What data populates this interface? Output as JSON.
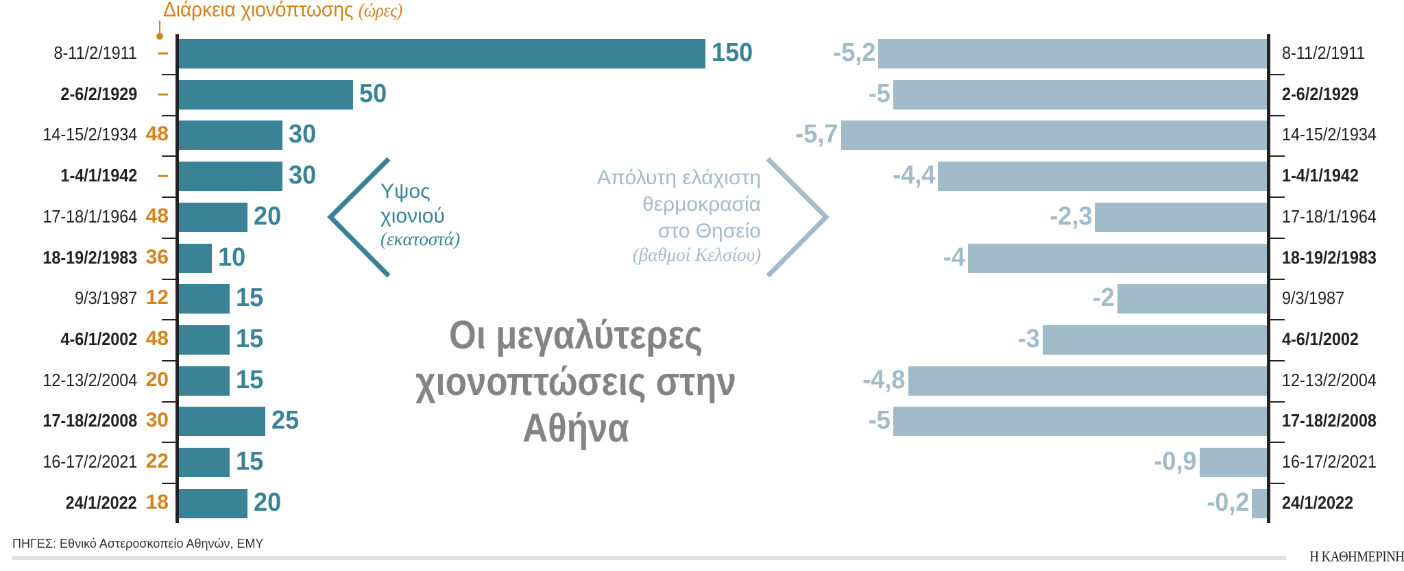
{
  "header": {
    "duration_label": "Διάρκεια χιονόπτωσης",
    "duration_unit": "(ώρες)"
  },
  "title": {
    "line1": "Οι μεγαλύτερες",
    "line2": "χιονοπτώσεις στην Αθήνα"
  },
  "legend": {
    "snow_line1": "Υψος",
    "snow_line2": "χιονιού",
    "snow_unit": "(εκατοστά)",
    "temp_line1": "Απόλυτη ελάχιστη",
    "temp_line2": "θερμοκρασία",
    "temp_line3": "στο Θησείο",
    "temp_unit": "(βαθμοί Κελσίου)"
  },
  "rows": [
    {
      "date": "8-11/2/1911",
      "hours": "–",
      "snow": "150",
      "temp": "-5,2",
      "bold": false
    },
    {
      "date": "2-6/2/1929",
      "hours": "–",
      "snow": "50",
      "temp": "-5",
      "bold": true
    },
    {
      "date": "14-15/2/1934",
      "hours": "48",
      "snow": "30",
      "temp": "-5,7",
      "bold": false
    },
    {
      "date": "1-4/1/1942",
      "hours": "–",
      "snow": "30",
      "temp": "-4,4",
      "bold": true
    },
    {
      "date": "17-18/1/1964",
      "hours": "48",
      "snow": "20",
      "temp": "-2,3",
      "bold": false
    },
    {
      "date": "18-19/2/1983",
      "hours": "36",
      "snow": "10",
      "temp": "-4",
      "bold": true
    },
    {
      "date": "9/3/1987",
      "hours": "12",
      "snow": "15",
      "temp": "-2",
      "bold": false
    },
    {
      "date": "4-6/1/2002",
      "hours": "48",
      "snow": "15",
      "temp": "-3",
      "bold": true
    },
    {
      "date": "12-13/2/2004",
      "hours": "20",
      "snow": "15",
      "temp": "-4,8",
      "bold": false
    },
    {
      "date": "17-18/2/2008",
      "hours": "30",
      "snow": "25",
      "temp": "-5",
      "bold": true
    },
    {
      "date": "16-17/2/2021",
      "hours": "22",
      "snow": "15",
      "temp": "-0,9",
      "bold": false
    },
    {
      "date": "24/1/2022",
      "hours": "18",
      "snow": "20",
      "temp": "-0,2",
      "bold": true
    }
  ],
  "footer": {
    "source": "ΠΗΓΕΣ: Εθνικό Αστεροσκοπείο Αθηνών, ΕΜΥ",
    "brand": "Η ΚΑΘΗΜΕΡΙΝΗ"
  },
  "colors": {
    "snow_bar": "#3a8397",
    "temp_bar": "#a1bcc8",
    "hours": "#d4821c",
    "title": "#848484"
  },
  "chart_data": [
    {
      "type": "bar",
      "orientation": "horizontal",
      "title": "Υψος χιονιού (εκατοστά)",
      "categories": [
        "8-11/2/1911",
        "2-6/2/1929",
        "14-15/2/1934",
        "1-4/1/1942",
        "17-18/1/1964",
        "18-19/2/1983",
        "9/3/1987",
        "4-6/1/2002",
        "12-13/2/2004",
        "17-18/2/2008",
        "16-17/2/2021",
        "24/1/2022"
      ],
      "values": [
        150,
        50,
        30,
        30,
        20,
        10,
        15,
        15,
        15,
        25,
        15,
        20
      ],
      "xlabel": "εκατοστά",
      "grid": false
    },
    {
      "type": "bar",
      "orientation": "horizontal",
      "title": "Απόλυτη ελάχιστη θερμοκρασία στο Θησείο (βαθμοί Κελσίου)",
      "categories": [
        "8-11/2/1911",
        "2-6/2/1929",
        "14-15/2/1934",
        "1-4/1/1942",
        "17-18/1/1964",
        "18-19/2/1983",
        "9/3/1987",
        "4-6/1/2002",
        "12-13/2/2004",
        "17-18/2/2008",
        "16-17/2/2021",
        "24/1/2022"
      ],
      "values": [
        -5.2,
        -5,
        -5.7,
        -4.4,
        -2.3,
        -4,
        -2,
        -3,
        -4.8,
        -5,
        -0.9,
        -0.2
      ],
      "xlabel": "βαθμοί Κελσίου",
      "grid": false
    },
    {
      "type": "table",
      "title": "Διάρκεια χιονόπτωσης (ώρες)",
      "categories": [
        "8-11/2/1911",
        "2-6/2/1929",
        "14-15/2/1934",
        "1-4/1/1942",
        "17-18/1/1964",
        "18-19/2/1983",
        "9/3/1987",
        "4-6/1/2002",
        "12-13/2/2004",
        "17-18/2/2008",
        "16-17/2/2021",
        "24/1/2022"
      ],
      "values": [
        null,
        null,
        48,
        null,
        48,
        36,
        12,
        48,
        20,
        30,
        22,
        18
      ]
    }
  ]
}
